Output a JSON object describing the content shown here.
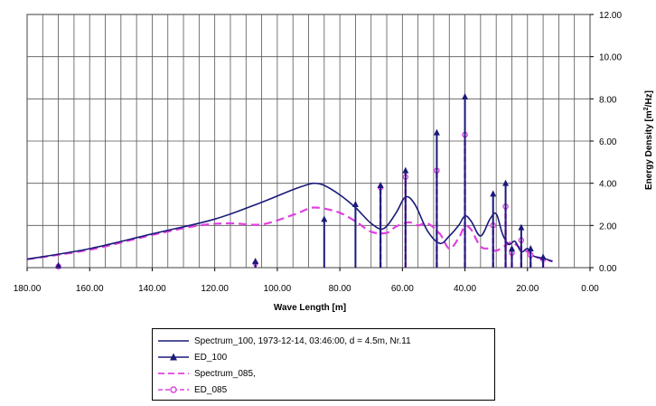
{
  "chart_data": {
    "type": "line",
    "title": "",
    "xlabel": "Wave Length [m]",
    "ylabel": "Energy Density [m²/Hz]",
    "xlim": [
      180,
      0
    ],
    "ylim": [
      0,
      12
    ],
    "x_ticks": [
      "180.00",
      "160.00",
      "140.00",
      "120.00",
      "100.00",
      "80.00",
      "60.00",
      "40.00",
      "20.00",
      "0.00"
    ],
    "y_ticks": [
      "0.00",
      "2.00",
      "4.00",
      "6.00",
      "8.00",
      "10.00",
      "12.00"
    ],
    "x_grid_step": 5,
    "legend_position": "bottom",
    "colors": {
      "s100": "#1a1a7a",
      "s085": "#e040e0"
    },
    "series": [
      {
        "name": "Spectrum_100, 1973-12-14, 03:46:00, d = 4.5m, Nr.11",
        "kind": "line",
        "style": "solid",
        "color": "#1a1a7a",
        "x": [
          180,
          160,
          140,
          120,
          105,
          95,
          90,
          88,
          85,
          80,
          75,
          70,
          66,
          62,
          59,
          56,
          52,
          48,
          45,
          42,
          40,
          38,
          35,
          32,
          30,
          28,
          26,
          24,
          22,
          20,
          18,
          15,
          12
        ],
        "y": [
          0.4,
          0.9,
          1.6,
          2.3,
          3.1,
          3.7,
          3.95,
          4.0,
          3.9,
          3.45,
          2.85,
          2.1,
          1.85,
          2.6,
          3.35,
          3.0,
          1.75,
          1.15,
          1.5,
          2.0,
          2.45,
          2.2,
          1.5,
          2.3,
          2.55,
          1.6,
          1.1,
          1.25,
          0.75,
          0.9,
          0.55,
          0.45,
          0.3
        ]
      },
      {
        "name": "ED_100",
        "kind": "stem",
        "style": "solid",
        "color": "#1a1a7a",
        "x": [
          170,
          107,
          85,
          75,
          67,
          59,
          49,
          40,
          31,
          27,
          25,
          22,
          19,
          15
        ],
        "y": [
          0.1,
          0.3,
          2.3,
          3.0,
          3.9,
          4.6,
          6.4,
          8.1,
          3.5,
          4.0,
          0.9,
          1.9,
          0.9,
          0.5
        ]
      },
      {
        "name": "Spectrum_085,",
        "kind": "line",
        "style": "dashed",
        "color": "#e040e0",
        "x": [
          180,
          160,
          140,
          125,
          115,
          105,
          95,
          90,
          88,
          85,
          80,
          75,
          70,
          65,
          62,
          58,
          55,
          52,
          48,
          45,
          42,
          40,
          38,
          35,
          32,
          30,
          27,
          25,
          22,
          20,
          18,
          15,
          12
        ],
        "y": [
          0.4,
          0.85,
          1.55,
          2.0,
          2.1,
          2.05,
          2.5,
          2.8,
          2.85,
          2.8,
          2.6,
          2.2,
          1.7,
          1.65,
          1.95,
          2.15,
          2.0,
          2.1,
          1.6,
          0.9,
          1.4,
          1.95,
          1.8,
          1.0,
          0.9,
          0.8,
          1.05,
          1.2,
          0.9,
          0.75,
          0.55,
          0.4,
          0.3
        ]
      },
      {
        "name": "ED_085",
        "kind": "stem",
        "style": "dashed",
        "color": "#e040e0",
        "x": [
          170,
          107,
          67,
          59,
          49,
          40,
          31,
          27,
          25,
          22,
          19,
          15
        ],
        "y": [
          0.05,
          0.2,
          3.8,
          4.3,
          4.6,
          6.3,
          2.0,
          2.9,
          0.7,
          1.3,
          0.6,
          0.4
        ]
      }
    ]
  }
}
